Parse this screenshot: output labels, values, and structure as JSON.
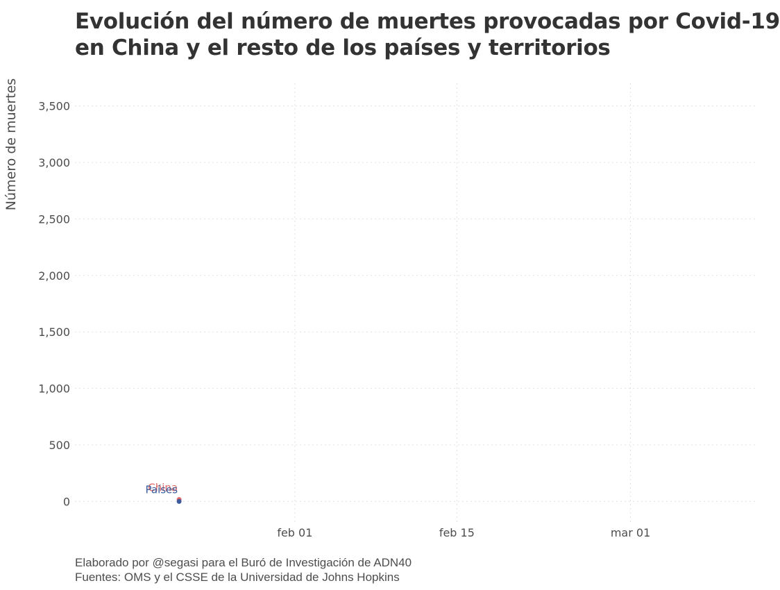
{
  "title_lines": [
    "Evolución del número de muertes provocadas por Covid-19",
    "en China y el resto de los países y territorios"
  ],
  "caption_lines": [
    "Elaborado por @segasi para el Buró de Investigación de ADN40",
    "Fuentes: OMS y el CSSE de la Universidad de Johns Hopkins"
  ],
  "colors": {
    "china": "#e06767",
    "paises": "#3b5a9c",
    "grid": "#e0e0e0",
    "text": "#333333"
  },
  "chart_data": {
    "type": "line",
    "title": "Evolución del número de muertes provocadas por Covid-19 en China y el resto de los países y territorios",
    "ylabel": "Número de muertes",
    "xlabel": "",
    "x_axis": {
      "type": "date",
      "min": "2020-01-13",
      "max": "2020-03-12",
      "ticks": [
        {
          "date": "2020-02-01",
          "label": "feb 01"
        },
        {
          "date": "2020-02-15",
          "label": "feb 15"
        },
        {
          "date": "2020-03-01",
          "label": "mar 01"
        }
      ]
    },
    "y_axis": {
      "min": -200,
      "max": 3700,
      "ticks": [
        {
          "value": 0,
          "label": "0"
        },
        {
          "value": 500,
          "label": "500"
        },
        {
          "value": 1000,
          "label": "1,000"
        },
        {
          "value": 1500,
          "label": "1,500"
        },
        {
          "value": 2000,
          "label": "2,000"
        },
        {
          "value": 2500,
          "label": "2,500"
        },
        {
          "value": 3000,
          "label": "3,000"
        },
        {
          "value": 3500,
          "label": "3,500"
        }
      ]
    },
    "grid": true,
    "legend": "none",
    "series": [
      {
        "name": "China",
        "color": "#e06767",
        "points": [
          {
            "date": "2020-01-22",
            "value": 17
          }
        ]
      },
      {
        "name": "Países",
        "color": "#3b5a9c",
        "points": [
          {
            "date": "2020-01-22",
            "value": 0
          }
        ]
      }
    ]
  }
}
